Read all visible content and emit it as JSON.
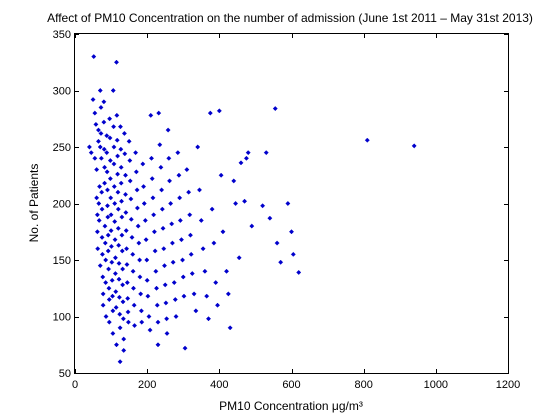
{
  "chart_data": {
    "type": "scatter",
    "title": "Affect of PM10 Concentration on the number of admission (June 1st 2011 – May 31st 2013)",
    "xlabel": "PM10 Concentration μg/m³",
    "ylabel": "No. of Patients",
    "xlim": [
      0,
      1200
    ],
    "ylim": [
      50,
      350
    ],
    "xticks": [
      0,
      200,
      400,
      600,
      800,
      1000,
      1200
    ],
    "yticks": [
      50,
      100,
      150,
      200,
      250,
      300,
      350
    ],
    "grid": false,
    "marker_color": "#0000cc",
    "points": [
      [
        40,
        250
      ],
      [
        45,
        245
      ],
      [
        50,
        292
      ],
      [
        52,
        330
      ],
      [
        55,
        280
      ],
      [
        55,
        240
      ],
      [
        58,
        270
      ],
      [
        60,
        230
      ],
      [
        60,
        205
      ],
      [
        62,
        190
      ],
      [
        62,
        175
      ],
      [
        63,
        160
      ],
      [
        65,
        255
      ],
      [
        65,
        265
      ],
      [
        66,
        200
      ],
      [
        67,
        185
      ],
      [
        68,
        215
      ],
      [
        70,
        300
      ],
      [
        70,
        250
      ],
      [
        70,
        145
      ],
      [
        72,
        285
      ],
      [
        72,
        262
      ],
      [
        73,
        240
      ],
      [
        74,
        210
      ],
      [
        75,
        195
      ],
      [
        75,
        170
      ],
      [
        76,
        155
      ],
      [
        77,
        135
      ],
      [
        78,
        120
      ],
      [
        78,
        110
      ],
      [
        80,
        290
      ],
      [
        80,
        272
      ],
      [
        81,
        248
      ],
      [
        82,
        232
      ],
      [
        82,
        218
      ],
      [
        83,
        180
      ],
      [
        84,
        165
      ],
      [
        85,
        150
      ],
      [
        85,
        130
      ],
      [
        86,
        100
      ],
      [
        88,
        260
      ],
      [
        88,
        245
      ],
      [
        89,
        228
      ],
      [
        90,
        212
      ],
      [
        90,
        198
      ],
      [
        91,
        188
      ],
      [
        92,
        172
      ],
      [
        92,
        158
      ],
      [
        93,
        142
      ],
      [
        94,
        125
      ],
      [
        95,
        115
      ],
      [
        95,
        95
      ],
      [
        96,
        275
      ],
      [
        97,
        258
      ],
      [
        98,
        238
      ],
      [
        98,
        222
      ],
      [
        99,
        205
      ],
      [
        100,
        190
      ],
      [
        100,
        176
      ],
      [
        101,
        162
      ],
      [
        102,
        148
      ],
      [
        103,
        132
      ],
      [
        104,
        118
      ],
      [
        105,
        105
      ],
      [
        105,
        85
      ],
      [
        106,
        300
      ],
      [
        107,
        268
      ],
      [
        108,
        250
      ],
      [
        108,
        235
      ],
      [
        109,
        215
      ],
      [
        110,
        200
      ],
      [
        110,
        184
      ],
      [
        111,
        168
      ],
      [
        112,
        152
      ],
      [
        112,
        138
      ],
      [
        113,
        122
      ],
      [
        114,
        108
      ],
      [
        115,
        75
      ],
      [
        115,
        325
      ],
      [
        116,
        278
      ],
      [
        117,
        256
      ],
      [
        118,
        242
      ],
      [
        118,
        226
      ],
      [
        119,
        210
      ],
      [
        120,
        195
      ],
      [
        120,
        178
      ],
      [
        121,
        163
      ],
      [
        122,
        147
      ],
      [
        122,
        133
      ],
      [
        123,
        117
      ],
      [
        124,
        102
      ],
      [
        125,
        90
      ],
      [
        125,
        60
      ],
      [
        126,
        268
      ],
      [
        127,
        248
      ],
      [
        128,
        232
      ],
      [
        128,
        218
      ],
      [
        129,
        202
      ],
      [
        130,
        188
      ],
      [
        130,
        172
      ],
      [
        131,
        158
      ],
      [
        132,
        142
      ],
      [
        132,
        128
      ],
      [
        133,
        113
      ],
      [
        134,
        98
      ],
      [
        135,
        80
      ],
      [
        135,
        70
      ],
      [
        137,
        262
      ],
      [
        138,
        244
      ],
      [
        140,
        225
      ],
      [
        140,
        208
      ],
      [
        141,
        192
      ],
      [
        142,
        176
      ],
      [
        143,
        160
      ],
      [
        144,
        146
      ],
      [
        145,
        130
      ],
      [
        146,
        116
      ],
      [
        147,
        104
      ],
      [
        148,
        95
      ],
      [
        150,
        255
      ],
      [
        152,
        238
      ],
      [
        153,
        220
      ],
      [
        155,
        204
      ],
      [
        156,
        186
      ],
      [
        158,
        170
      ],
      [
        160,
        155
      ],
      [
        161,
        140
      ],
      [
        162,
        125
      ],
      [
        164,
        110
      ],
      [
        165,
        92
      ],
      [
        168,
        245
      ],
      [
        170,
        228
      ],
      [
        172,
        212
      ],
      [
        173,
        196
      ],
      [
        175,
        180
      ],
      [
        177,
        165
      ],
      [
        179,
        150
      ],
      [
        180,
        135
      ],
      [
        182,
        120
      ],
      [
        184,
        105
      ],
      [
        185,
        95
      ],
      [
        188,
        235
      ],
      [
        190,
        215
      ],
      [
        192,
        200
      ],
      [
        195,
        185
      ],
      [
        197,
        168
      ],
      [
        199,
        150
      ],
      [
        200,
        132
      ],
      [
        202,
        118
      ],
      [
        205,
        100
      ],
      [
        208,
        88
      ],
      [
        210,
        278
      ],
      [
        212,
        240
      ],
      [
        214,
        222
      ],
      [
        216,
        205
      ],
      [
        218,
        190
      ],
      [
        220,
        175
      ],
      [
        222,
        158
      ],
      [
        224,
        140
      ],
      [
        226,
        125
      ],
      [
        228,
        110
      ],
      [
        230,
        95
      ],
      [
        230,
        75
      ],
      [
        232,
        280
      ],
      [
        235,
        252
      ],
      [
        238,
        232
      ],
      [
        240,
        212
      ],
      [
        242,
        195
      ],
      [
        244,
        178
      ],
      [
        246,
        160
      ],
      [
        248,
        145
      ],
      [
        250,
        128
      ],
      [
        252,
        112
      ],
      [
        254,
        98
      ],
      [
        255,
        85
      ],
      [
        258,
        265
      ],
      [
        260,
        240
      ],
      [
        262,
        220
      ],
      [
        265,
        200
      ],
      [
        268,
        182
      ],
      [
        270,
        165
      ],
      [
        272,
        148
      ],
      [
        275,
        130
      ],
      [
        278,
        115
      ],
      [
        280,
        100
      ],
      [
        285,
        245
      ],
      [
        288,
        225
      ],
      [
        290,
        205
      ],
      [
        292,
        185
      ],
      [
        295,
        168
      ],
      [
        298,
        150
      ],
      [
        300,
        135
      ],
      [
        302,
        118
      ],
      [
        305,
        72
      ],
      [
        310,
        230
      ],
      [
        315,
        210
      ],
      [
        318,
        190
      ],
      [
        320,
        172
      ],
      [
        322,
        155
      ],
      [
        325,
        138
      ],
      [
        330,
        120
      ],
      [
        335,
        105
      ],
      [
        340,
        250
      ],
      [
        345,
        212
      ],
      [
        350,
        185
      ],
      [
        355,
        160
      ],
      [
        360,
        140
      ],
      [
        365,
        118
      ],
      [
        370,
        98
      ],
      [
        375,
        280
      ],
      [
        380,
        195
      ],
      [
        385,
        165
      ],
      [
        390,
        130
      ],
      [
        395,
        110
      ],
      [
        400,
        282
      ],
      [
        405,
        225
      ],
      [
        410,
        175
      ],
      [
        420,
        140
      ],
      [
        425,
        120
      ],
      [
        430,
        90
      ],
      [
        440,
        220
      ],
      [
        445,
        200
      ],
      [
        455,
        152
      ],
      [
        460,
        236
      ],
      [
        470,
        202
      ],
      [
        475,
        240
      ],
      [
        480,
        245
      ],
      [
        490,
        180
      ],
      [
        520,
        198
      ],
      [
        530,
        245
      ],
      [
        540,
        187
      ],
      [
        555,
        284
      ],
      [
        560,
        165
      ],
      [
        570,
        148
      ],
      [
        590,
        200
      ],
      [
        600,
        175
      ],
      [
        605,
        155
      ],
      [
        620,
        139
      ],
      [
        810,
        256
      ],
      [
        940,
        251
      ]
    ]
  }
}
